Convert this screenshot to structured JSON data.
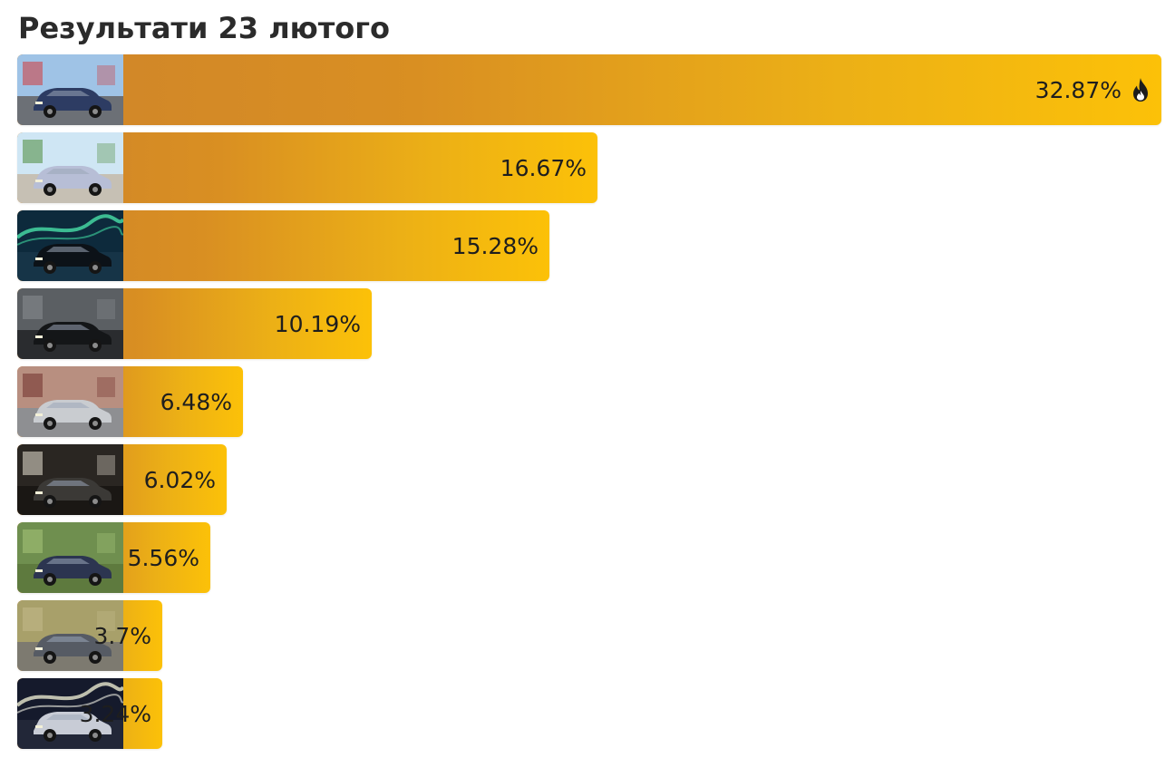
{
  "title": "Результати 23 лютого",
  "chart_data": {
    "type": "bar",
    "orientation": "horizontal",
    "title": "Результати 23 лютого",
    "unit": "%",
    "xlim": [
      0,
      32.87
    ],
    "grid": false,
    "legend": "none",
    "bar_gradient": [
      "#cf852a",
      "#fcc108"
    ],
    "bars": [
      {
        "value": 32.87,
        "label": "32.87%",
        "thumbnail": "blue-sedan-photo",
        "icon": "fire-icon"
      },
      {
        "value": 16.67,
        "label": "16.67%",
        "thumbnail": "silver-coupe-photo"
      },
      {
        "value": 15.28,
        "label": "15.28%",
        "thumbnail": "aurora-night-car-photo"
      },
      {
        "value": 10.19,
        "label": "10.19%",
        "thumbnail": "black-sedan-photo"
      },
      {
        "value": 6.48,
        "label": "6.48%",
        "thumbnail": "silver-wagon-photo"
      },
      {
        "value": 6.02,
        "label": "6.02%",
        "thumbnail": "dark-suv-night-photo"
      },
      {
        "value": 5.56,
        "label": "5.56%",
        "thumbnail": "blue-wagon-forest-photo"
      },
      {
        "value": 3.7,
        "label": "3.7%",
        "thumbnail": "gray-suv-photo"
      },
      {
        "value": 3.24,
        "label": "3.24%",
        "thumbnail": "white-suv-night-photo"
      }
    ]
  }
}
